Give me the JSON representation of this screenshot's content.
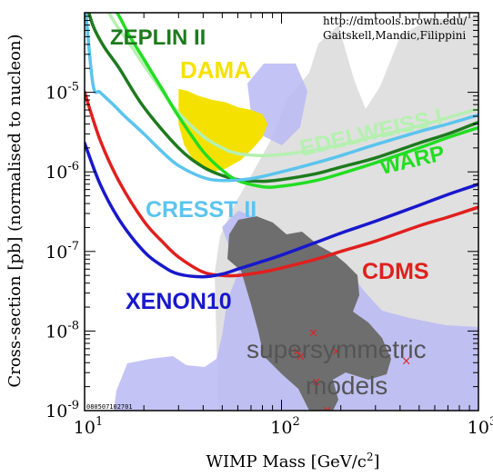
{
  "chart_data": {
    "type": "line",
    "title": "",
    "xlabel": "WIMP Mass [GeV/c²]",
    "ylabel": "Cross-section [pb] (normalised to nucleon)",
    "x_scale": "log",
    "y_scale": "log",
    "xlim": [
      10,
      1000
    ],
    "ylim": [
      1e-09,
      0.0001
    ],
    "x_ticks": [
      {
        "value": 10,
        "base": "10",
        "exp": "1"
      },
      {
        "value": 100,
        "base": "10",
        "exp": "2"
      },
      {
        "value": 1000,
        "base": "10",
        "exp": "3"
      }
    ],
    "y_ticks": [
      {
        "value": 1e-05,
        "base": "10",
        "exp": "-5"
      },
      {
        "value": 1e-06,
        "base": "10",
        "exp": "-6"
      },
      {
        "value": 1e-07,
        "base": "10",
        "exp": "-7"
      },
      {
        "value": 1e-08,
        "base": "10",
        "exp": "-8"
      },
      {
        "value": 1e-09,
        "base": "10",
        "exp": "-9"
      }
    ],
    "credit_lines": [
      "http://dmtools.brown.edu/",
      "Gaitskell,Mandic,Filippini"
    ],
    "plot_id": "080507102701",
    "series": [
      {
        "name": "ZEPLIN II",
        "color": "#1e7a1e",
        "x": [
          10,
          11,
          12.5,
          15,
          20,
          30,
          40,
          50,
          60,
          80,
          100,
          150,
          200,
          300,
          500,
          700,
          1000
        ],
        "y": [
          0.00016,
          7e-05,
          3.8e-05,
          2e-05,
          6.5e-06,
          2e-06,
          1.15e-06,
          9e-07,
          8e-07,
          7.6e-07,
          8e-07,
          9.5e-07,
          1.15e-06,
          1.5e-06,
          2.3e-06,
          3e-06,
          4.2e-06
        ]
      },
      {
        "name": "EDELWEISS I",
        "color": "#b6f0b0",
        "x": [
          12,
          14,
          17,
          20,
          25,
          30,
          40,
          50,
          60,
          80,
          100,
          150,
          200,
          300,
          500,
          700,
          1000
        ],
        "y": [
          0.00016,
          8e-05,
          4e-05,
          2.2e-05,
          1e-05,
          5.5e-06,
          2.8e-06,
          2e-06,
          1.7e-06,
          1.6e-06,
          1.65e-06,
          1.9e-06,
          2.2e-06,
          2.8e-06,
          3.8e-06,
          4.8e-06,
          6.2e-06
        ]
      },
      {
        "name": "WARP",
        "color": "#22dd22",
        "x": [
          13,
          15,
          17,
          20,
          25,
          30,
          40,
          50,
          60,
          80,
          100,
          150,
          200,
          300,
          500,
          700,
          1000
        ],
        "y": [
          0.00016,
          9e-05,
          5e-05,
          2.6e-05,
          1.05e-05,
          5e-06,
          1.8e-06,
          1.05e-06,
          7.8e-07,
          6.5e-07,
          6.6e-07,
          7.8e-07,
          9.5e-07,
          1.3e-06,
          2e-06,
          2.7e-06,
          3.6e-06
        ]
      },
      {
        "name": "CRESST II",
        "color": "#5bc4ee",
        "x": [
          10,
          11,
          12,
          14,
          16,
          20,
          25,
          30,
          40,
          50,
          70,
          100,
          150,
          200,
          300,
          500,
          700,
          1000
        ],
        "y": [
          0.00016,
          1.3e-05,
          1e-05,
          7e-06,
          5e-06,
          3e-06,
          1.75e-06,
          1.2e-06,
          8.5e-07,
          7.8e-07,
          8.2e-07,
          1e-06,
          1.3e-06,
          1.6e-06,
          2.2e-06,
          3.2e-06,
          4e-06,
          5.2e-06
        ]
      },
      {
        "name": "CDMS",
        "color": "#e0201e",
        "x": [
          10,
          12,
          15,
          20,
          25,
          30,
          40,
          50,
          60,
          80,
          100,
          150,
          200,
          300,
          500,
          700,
          1000
        ],
        "y": [
          1e-05,
          2.5e-06,
          7.5e-07,
          2.4e-07,
          1.3e-07,
          8.5e-08,
          5.5e-08,
          5e-08,
          5e-08,
          5.5e-08,
          6.2e-08,
          8e-08,
          1e-07,
          1.35e-07,
          2.1e-07,
          2.7e-07,
          3.6e-07
        ]
      },
      {
        "name": "XENON10",
        "color": "#1818cc",
        "x": [
          10,
          12,
          15,
          20,
          25,
          30,
          40,
          50,
          60,
          80,
          100,
          150,
          200,
          300,
          500,
          700,
          1000
        ],
        "y": [
          2.3e-06,
          7e-07,
          2.5e-07,
          1e-07,
          6.5e-08,
          5.2e-08,
          4.8e-08,
          5.2e-08,
          6e-08,
          7.5e-08,
          9e-08,
          1.3e-07,
          1.7e-07,
          2.4e-07,
          3.8e-07,
          5.2e-07,
          7e-07
        ]
      }
    ],
    "regions": [
      {
        "name": "DAMA",
        "color": "#f5e100",
        "x": [
          30,
          33,
          38,
          45,
          52,
          60,
          70,
          80,
          85,
          80,
          72,
          62,
          52,
          45,
          40,
          35,
          32,
          30
        ],
        "y": [
          1.1e-05,
          1.05e-05,
          9e-06,
          8e-06,
          7.5e-06,
          6.5e-06,
          6e-06,
          5.3e-06,
          4e-06,
          2.7e-06,
          2e-06,
          1.4e-06,
          1.1e-06,
          1e-06,
          1.1e-06,
          1.5e-06,
          2.2e-06,
          4e-06
        ]
      }
    ],
    "region_label": [
      "supersymmetric",
      "models"
    ],
    "markers": {
      "symbol": "×",
      "color": "#e02020",
      "points": [
        [
          145,
          9.5e-09
        ],
        [
          120,
          5.5e-09
        ],
        [
          190,
          5.5e-09
        ],
        [
          125,
          4.8e-09
        ],
        [
          430,
          4.2e-09
        ],
        [
          150,
          2.3e-09
        ],
        [
          170,
          1e-09
        ]
      ]
    }
  }
}
